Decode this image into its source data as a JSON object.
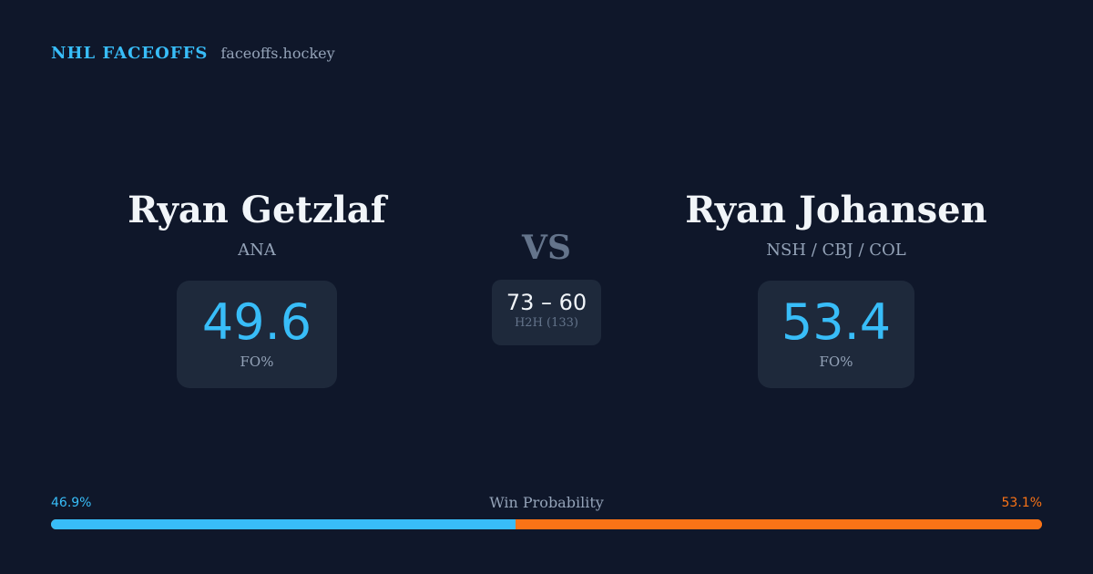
{
  "brand": {
    "title": "NHL FACEOFFS",
    "domain": "faceoffs.hockey"
  },
  "player_left": {
    "name": "Ryan Getzlaf",
    "team": "ANA",
    "stat_value": "49.6",
    "stat_label": "FO%"
  },
  "vs_label": "VS",
  "head_to_head": {
    "score": "73 – 60",
    "label": "H2H (133)"
  },
  "player_right": {
    "name": "Ryan Johansen",
    "team": "NSH / CBJ / COL",
    "stat_value": "53.4",
    "stat_label": "FO%"
  },
  "win_probability": {
    "title": "Win Probability",
    "left_label": "46.9%",
    "right_label": "53.1%",
    "left_value": 46.9,
    "right_value": 53.1,
    "left_color": "#38bdf8",
    "right_color": "#f97316"
  }
}
